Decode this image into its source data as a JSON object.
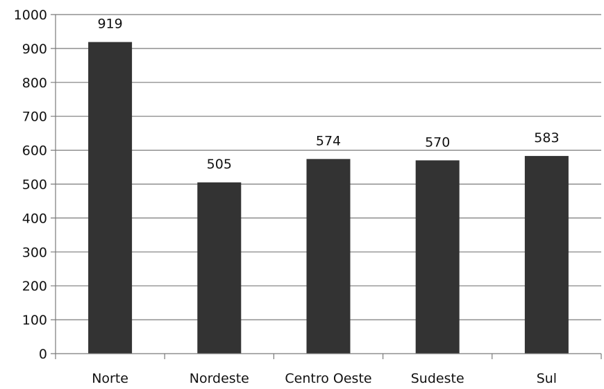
{
  "chart_data": {
    "type": "bar",
    "categories": [
      "Norte",
      "Nordeste",
      "Centro Oeste",
      "Sudeste",
      "Sul"
    ],
    "values": [
      919,
      505,
      574,
      570,
      583
    ],
    "data_labels": [
      "919",
      "505",
      "574",
      "570",
      "583"
    ],
    "y_ticks": [
      "0",
      "100",
      "200",
      "300",
      "400",
      "500",
      "600",
      "700",
      "800",
      "900",
      "1000"
    ],
    "ylim": [
      0,
      1000
    ],
    "title": "",
    "xlabel": "",
    "ylabel": "",
    "grid": true,
    "legend": "none",
    "bar_color": "#333333"
  }
}
